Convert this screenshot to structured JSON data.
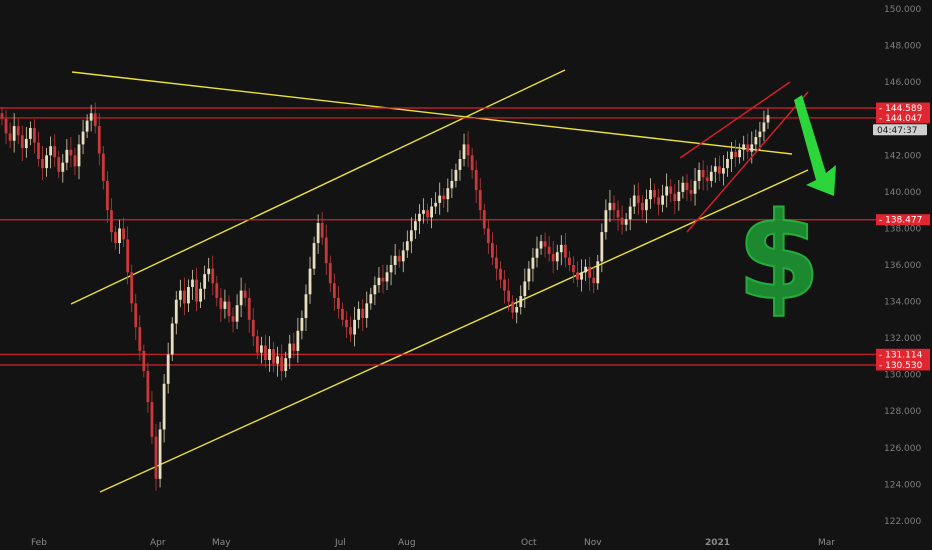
{
  "chart_data": {
    "type": "candlestick",
    "y_range": [
      121.5,
      150.5
    ],
    "y_ticks": [
      "122.000",
      "124.000",
      "126.000",
      "128.000",
      "130.000",
      "132.000",
      "134.000",
      "136.000",
      "138.000",
      "140.000",
      "142.000",
      "144.000",
      "146.000",
      "148.000",
      "150.000"
    ],
    "x_months": [
      "Feb",
      "Apr",
      "May",
      "Jul",
      "Aug",
      "Oct",
      "Nov",
      "2021",
      "Mar"
    ],
    "horizontal_levels": [
      {
        "label": "144.589",
        "value": 144.589
      },
      {
        "label": "144.047",
        "value": 144.047
      },
      {
        "label": "138.477",
        "value": 138.477
      },
      {
        "label": "131.114",
        "value": 131.114
      },
      {
        "label": "130.530",
        "value": 130.53
      }
    ],
    "last_price_box": {
      "label": "04:47:37",
      "value": 143.4
    },
    "series_close": [
      144.0,
      143.2,
      142.8,
      143.6,
      143.1,
      142.4,
      142.9,
      143.5,
      142.7,
      141.8,
      141.3,
      142.0,
      142.5,
      141.9,
      141.1,
      141.6,
      142.3,
      142.0,
      141.4,
      142.6,
      143.3,
      143.9,
      144.3,
      143.6,
      142.1,
      140.6,
      139.0,
      137.8,
      137.2,
      138.0,
      137.4,
      135.6,
      133.9,
      132.6,
      131.3,
      130.2,
      128.5,
      126.6,
      124.3,
      127.0,
      129.5,
      131.1,
      132.8,
      134.1,
      134.6,
      133.9,
      134.8,
      135.2,
      134.0,
      134.7,
      135.5,
      135.8,
      135.0,
      134.2,
      133.6,
      134.0,
      133.2,
      132.9,
      133.8,
      134.6,
      134.2,
      133.0,
      132.1,
      131.2,
      131.6,
      130.8,
      131.4,
      130.6,
      131.0,
      130.2,
      130.9,
      131.7,
      131.3,
      132.4,
      133.1,
      134.4,
      135.8,
      137.2,
      138.3,
      137.5,
      136.1,
      135.0,
      134.2,
      133.6,
      133.0,
      132.6,
      132.2,
      133.0,
      133.6,
      133.1,
      133.9,
      134.4,
      134.9,
      135.3,
      135.1,
      135.6,
      136.0,
      136.5,
      136.2,
      136.8,
      137.3,
      137.9,
      138.4,
      138.8,
      139.0,
      138.6,
      139.2,
      139.4,
      139.8,
      139.6,
      140.2,
      140.6,
      141.2,
      141.8,
      142.6,
      142.0,
      141.2,
      140.1,
      139.0,
      138.0,
      137.2,
      136.4,
      135.8,
      135.2,
      134.6,
      134.0,
      133.4,
      133.7,
      134.3,
      135.1,
      135.8,
      136.4,
      136.9,
      137.3,
      137.0,
      136.6,
      136.2,
      136.7,
      137.1,
      136.4,
      136.0,
      135.6,
      135.2,
      135.6,
      135.9,
      135.3,
      135.0,
      136.2,
      137.8,
      139.0,
      139.4,
      139.0,
      138.6,
      138.2,
      138.5,
      139.2,
      139.8,
      139.4,
      139.0,
      139.6,
      140.1,
      139.7,
      139.3,
      139.8,
      140.3,
      139.9,
      139.5,
      140.0,
      140.5,
      140.1,
      139.9,
      140.6,
      141.2,
      140.8,
      140.6,
      141.1,
      141.4,
      141.0,
      141.3,
      141.8,
      142.2,
      141.9,
      142.3,
      142.6,
      142.2,
      142.6,
      143.0,
      143.3,
      143.8,
      144.2
    ]
  }
}
